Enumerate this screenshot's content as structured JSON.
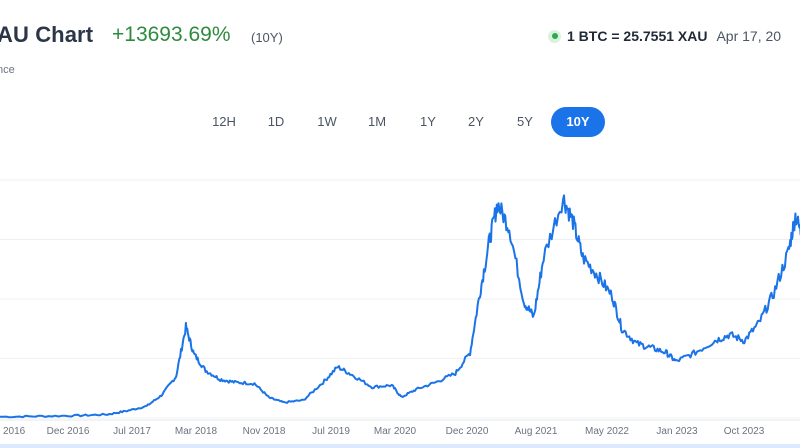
{
  "header": {
    "title": "AU Chart",
    "change": "+13693.69%",
    "period": "(10Y)",
    "subtitle": "nce"
  },
  "rate": {
    "text": "1 BTC = 25.7551 XAU",
    "date": "Apr 17, 20",
    "status_color": "#2fa84f"
  },
  "tabs": [
    {
      "label": "12H",
      "active": false
    },
    {
      "label": "1D",
      "active": false
    },
    {
      "label": "1W",
      "active": false
    },
    {
      "label": "1M",
      "active": false
    },
    {
      "label": "1Y",
      "active": false
    },
    {
      "label": "2Y",
      "active": false
    },
    {
      "label": "5Y",
      "active": false
    },
    {
      "label": "10Y",
      "active": true
    }
  ],
  "colors": {
    "accent": "#1a73e8",
    "line": "#1a73e8",
    "positive": "#2e8b3e"
  },
  "chart_data": {
    "type": "line",
    "title": "",
    "xlabel": "",
    "ylabel": "",
    "grid": true,
    "tick_labels": [
      "2016",
      "Dec 2016",
      "Jul 2017",
      "Mar 2018",
      "Nov 2018",
      "Jul 2019",
      "Mar 2020",
      "Dec 2020",
      "Aug 2021",
      "May 2022",
      "Jan 2023",
      "Oct 2023"
    ],
    "ylim": [
      0,
      40
    ],
    "series": [
      {
        "values": [
          [
            2016.1,
            0.2
          ],
          [
            2016.5,
            0.3
          ],
          [
            2016.9,
            0.4
          ],
          [
            2017.2,
            0.6
          ],
          [
            2017.4,
            1.2
          ],
          [
            2017.6,
            2.0
          ],
          [
            2017.75,
            3.8
          ],
          [
            2017.9,
            7.0
          ],
          [
            2018.0,
            15.3
          ],
          [
            2018.08,
            10.8
          ],
          [
            2018.2,
            8.0
          ],
          [
            2018.35,
            6.5
          ],
          [
            2018.5,
            6.0
          ],
          [
            2018.7,
            5.8
          ],
          [
            2018.85,
            3.4
          ],
          [
            2019.0,
            2.6
          ],
          [
            2019.2,
            3.0
          ],
          [
            2019.4,
            6.0
          ],
          [
            2019.55,
            8.6
          ],
          [
            2019.7,
            7.2
          ],
          [
            2019.9,
            5.2
          ],
          [
            2020.1,
            5.5
          ],
          [
            2020.2,
            3.5
          ],
          [
            2020.35,
            4.8
          ],
          [
            2020.55,
            6.0
          ],
          [
            2020.75,
            7.5
          ],
          [
            2020.9,
            11.0
          ],
          [
            2021.0,
            21.0
          ],
          [
            2021.1,
            30.0
          ],
          [
            2021.18,
            36.0
          ],
          [
            2021.3,
            32.0
          ],
          [
            2021.45,
            19.5
          ],
          [
            2021.55,
            17.0
          ],
          [
            2021.65,
            27.0
          ],
          [
            2021.85,
            37.0
          ],
          [
            2021.95,
            33.0
          ],
          [
            2022.05,
            27.0
          ],
          [
            2022.2,
            24.0
          ],
          [
            2022.35,
            20.5
          ],
          [
            2022.45,
            15.0
          ],
          [
            2022.6,
            12.5
          ],
          [
            2022.75,
            11.8
          ],
          [
            2022.9,
            11.0
          ],
          [
            2023.0,
            9.5
          ],
          [
            2023.2,
            11.0
          ],
          [
            2023.4,
            13.0
          ],
          [
            2023.55,
            14.0
          ],
          [
            2023.7,
            13.0
          ],
          [
            2023.85,
            16.0
          ],
          [
            2024.0,
            21.0
          ],
          [
            2024.15,
            28.0
          ],
          [
            2024.22,
            34.0
          ],
          [
            2024.3,
            30.0
          ]
        ]
      }
    ]
  }
}
